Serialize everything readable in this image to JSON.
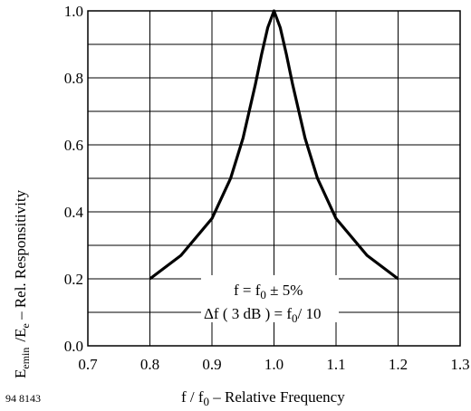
{
  "chart_data": {
    "type": "line",
    "xlabel": "f / f",
    "xlabel_sub": "0",
    "xlabel_rest": " – Relative Frequency",
    "ylabel": "E    /E  – Rel. Responsitivity",
    "ylabel_e_min": "E",
    "ylabel_sub_e": "e",
    "ylabel_sub_min": "min",
    "ylabel_slash_e": "/E",
    "ylabel_sub_e2": "e",
    "ylabel_rest": "  – Rel. Responsitivity",
    "figure_code": "94 8143",
    "xlim": [
      0.7,
      1.3
    ],
    "ylim": [
      0.0,
      1.0
    ],
    "x_ticks": [
      "0.7",
      "0.8",
      "0.9",
      "1.0",
      "1.1",
      "1.2",
      "1.3"
    ],
    "y_ticks": [
      "0.0",
      "0.2",
      "0.4",
      "0.6",
      "0.8",
      "1.0"
    ],
    "grid": true,
    "series": [
      {
        "x": [
          0.8,
          0.85,
          0.9,
          0.93,
          0.95,
          0.97,
          0.98,
          0.99,
          1.0,
          1.01,
          1.02,
          1.03,
          1.05,
          1.07,
          1.1,
          1.15,
          1.2
        ],
        "y": [
          0.2,
          0.27,
          0.38,
          0.5,
          0.62,
          0.78,
          0.87,
          0.95,
          1.0,
          0.95,
          0.87,
          0.78,
          0.62,
          0.5,
          0.38,
          0.27,
          0.2
        ]
      }
    ],
    "annotation": {
      "line1_a": "f = f",
      "line1_sub": "0",
      "line1_b": " ± 5%",
      "line2_a": "Δf ( 3 dB ) = f",
      "line2_sub": "0",
      "line2_b": "/ 10"
    }
  }
}
